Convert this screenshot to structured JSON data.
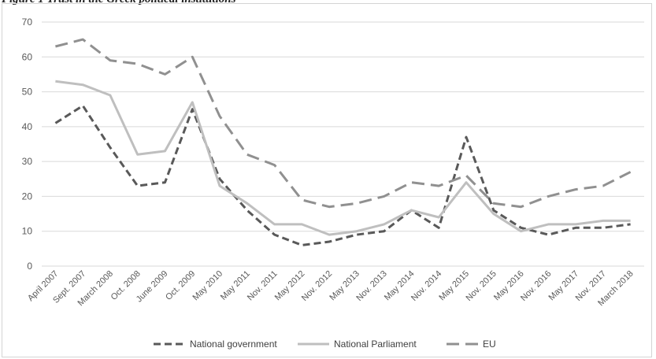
{
  "caption": "Figure 1   Trust in the Greek political institutions",
  "chart_data": {
    "type": "line",
    "title": "",
    "xlabel": "",
    "ylabel": "",
    "ylim": [
      0,
      70
    ],
    "yticks": [
      "0",
      "10",
      "20",
      "30",
      "40",
      "50",
      "60",
      "70"
    ],
    "grid": "horizontal",
    "legend_position": "bottom",
    "categories": [
      "April 2007",
      "Sept. 2007",
      "March 2008",
      "Oct. 2008",
      "June 2009",
      "Oct. 2009",
      "May 2010",
      "May 2011",
      "Nov. 2011",
      "May 2012",
      "Nov. 2012",
      "May 2013",
      "Nov. 2013",
      "May 2014",
      "Nov. 2014",
      "May 2015",
      "Nov. 2015",
      "May 2016",
      "Nov. 2016",
      "May 2017",
      "Nov. 2017",
      "March 2018"
    ],
    "series": [
      {
        "name": "National government",
        "color": "#595959",
        "style": "dashed-short",
        "values": [
          41,
          46,
          34,
          23,
          24,
          45,
          25,
          16,
          9,
          6,
          7,
          9,
          10,
          16,
          11,
          37,
          16,
          11,
          9,
          11,
          11,
          12
        ]
      },
      {
        "name": "National Parliament",
        "color": "#bfbfbf",
        "style": "solid",
        "values": [
          53,
          52,
          49,
          32,
          33,
          47,
          23,
          18,
          12,
          12,
          9,
          10,
          12,
          16,
          14,
          24,
          15,
          10,
          12,
          12,
          13,
          13
        ]
      },
      {
        "name": "EU",
        "color": "#909090",
        "style": "dashed-long",
        "values": [
          63,
          65,
          59,
          58,
          55,
          60,
          43,
          32,
          29,
          19,
          17,
          18,
          20,
          24,
          23,
          26,
          18,
          17,
          20,
          22,
          23,
          27
        ]
      }
    ]
  }
}
